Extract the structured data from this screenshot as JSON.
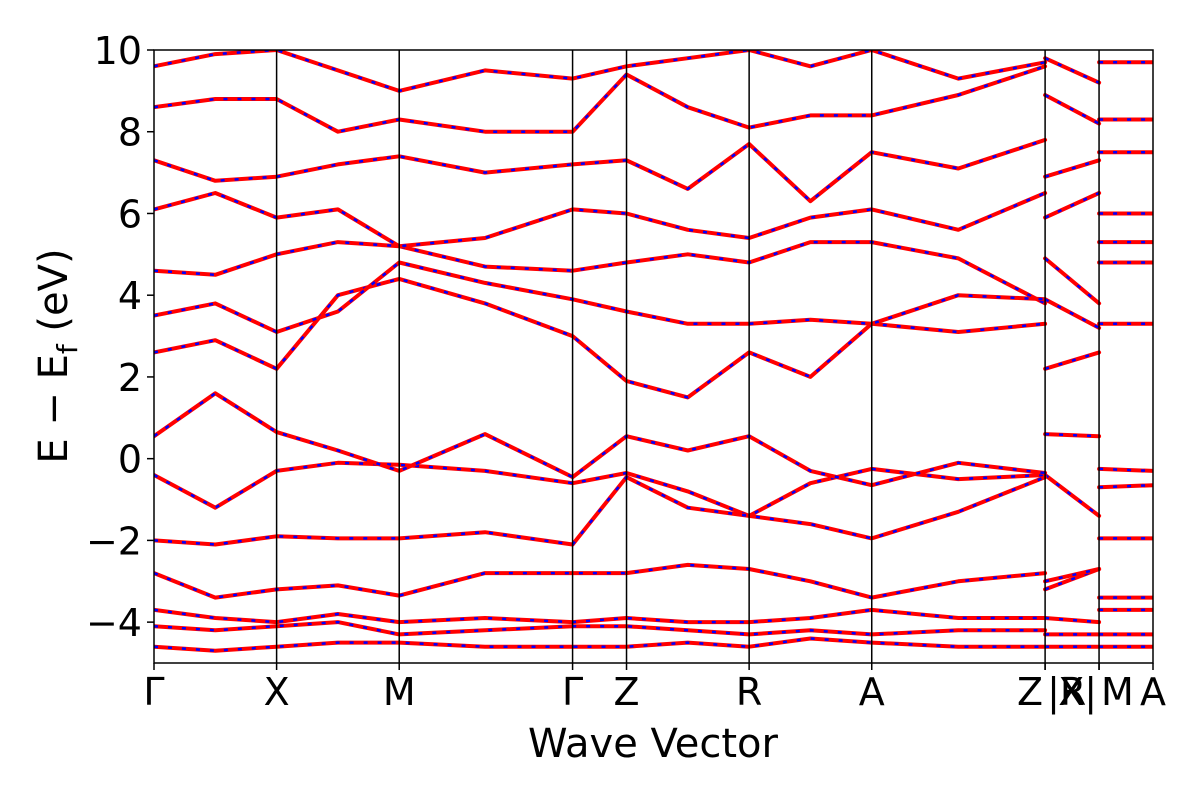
{
  "chart_data": {
    "type": "line",
    "title": "",
    "xlabel": "Wave Vector",
    "ylabel_main": "E − E",
    "ylabel_sub": "f",
    "ylabel_unit": " (eV)",
    "ylim": [
      -5,
      10
    ],
    "yticks": [
      -4,
      -2,
      0,
      2,
      4,
      6,
      8,
      10
    ],
    "grid": false,
    "legend": "none",
    "high_symmetry_points": [
      {
        "label": "Γ",
        "x": 0.0
      },
      {
        "label": "X",
        "x": 0.5
      },
      {
        "label": "M",
        "x": 1.0
      },
      {
        "label": "Γ",
        "x": 1.707
      },
      {
        "label": "Z",
        "x": 1.927
      },
      {
        "label": "R",
        "x": 2.427
      },
      {
        "label": "A",
        "x": 2.927
      },
      {
        "label": "Z",
        "x": 3.634
      },
      {
        "label": "|R",
        "x": 3.634
      },
      {
        "label": "X|",
        "x": 3.854
      },
      {
        "label": "M",
        "x": 3.854
      },
      {
        "label": "A",
        "x": 4.074
      }
    ],
    "section_boundaries": [
      0.5,
      1.0,
      1.707,
      1.927,
      2.427,
      2.927,
      3.634,
      3.854
    ],
    "xlim": [
      0.0,
      4.074
    ],
    "series": [
      {
        "color": "#ff0000",
        "style": "solid",
        "x": [
          0,
          0.25,
          0.5,
          0.75,
          1.0,
          1.35,
          1.707,
          1.927,
          2.177,
          2.427,
          2.677,
          2.927,
          3.28,
          3.634,
          3.634,
          3.854,
          3.854,
          4.074
        ],
        "y": [
          -0.4,
          -1.2,
          -0.3,
          -0.1,
          -0.15,
          -0.3,
          -0.6,
          -0.35,
          -0.8,
          -1.4,
          -0.6,
          -0.25,
          -0.5,
          -0.4,
          -0.4,
          -1.4,
          -0.25,
          -0.3
        ]
      },
      {
        "color": "#ff0000",
        "style": "solid",
        "x": [
          0,
          0.25,
          0.5,
          0.75,
          1.0,
          1.35,
          1.707,
          1.927,
          2.177,
          2.427,
          2.677,
          2.927,
          3.28,
          3.634,
          3.634,
          3.854,
          3.854,
          4.074
        ],
        "y": [
          0.55,
          1.6,
          0.65,
          0.2,
          -0.3,
          0.6,
          -0.45,
          0.55,
          0.2,
          0.55,
          -0.3,
          -0.65,
          -0.1,
          -0.35,
          0.6,
          0.55,
          -0.7,
          -0.65
        ]
      },
      {
        "color": "#ff0000",
        "style": "solid",
        "x": [
          0,
          0.25,
          0.5,
          0.75,
          1.0,
          1.35,
          1.707,
          1.927,
          2.177,
          2.427,
          2.677,
          2.927,
          3.28,
          3.634,
          3.634,
          3.854,
          3.854,
          4.074
        ],
        "y": [
          -2.0,
          -2.1,
          -1.9,
          -1.95,
          -1.95,
          -1.8,
          -2.1,
          -0.45,
          -1.2,
          -1.4,
          -1.6,
          -1.95,
          -1.3,
          -0.45,
          -3.2,
          -2.7,
          -1.95,
          -1.95
        ]
      },
      {
        "color": "#ff0000",
        "style": "solid",
        "x": [
          0,
          0.25,
          0.5,
          0.75,
          1.0,
          1.35,
          1.707,
          1.927,
          2.177,
          2.427,
          2.677,
          2.927,
          3.28,
          3.634,
          3.634,
          3.854,
          3.854,
          4.074
        ],
        "y": [
          2.6,
          2.9,
          2.2,
          4.0,
          4.4,
          3.8,
          3.0,
          1.9,
          1.5,
          2.6,
          2.0,
          3.3,
          3.1,
          3.3,
          2.2,
          2.6,
          3.3,
          3.3
        ]
      },
      {
        "color": "#ff0000",
        "style": "solid",
        "x": [
          0,
          0.25,
          0.5,
          0.75,
          1.0,
          1.35,
          1.707,
          1.927,
          2.177,
          2.427,
          2.677,
          2.927,
          3.28,
          3.634,
          3.634,
          3.854,
          3.854,
          4.074
        ],
        "y": [
          -2.8,
          -3.4,
          -3.2,
          -3.1,
          -3.35,
          -2.8,
          -2.8,
          -2.8,
          -2.6,
          -2.7,
          -3.0,
          -3.4,
          -3.0,
          -2.8,
          -3.0,
          -2.7,
          -3.4,
          -3.4
        ]
      },
      {
        "color": "#ff0000",
        "style": "solid",
        "x": [
          0,
          0.25,
          0.5,
          0.75,
          1.0,
          1.35,
          1.707,
          1.927,
          2.177,
          2.427,
          2.677,
          2.927,
          3.28,
          3.634,
          3.634,
          3.854,
          3.854,
          4.074
        ],
        "y": [
          4.6,
          4.5,
          5.0,
          5.3,
          5.2,
          4.7,
          4.6,
          4.8,
          5.0,
          4.8,
          5.3,
          5.3,
          4.9,
          3.8,
          4.9,
          3.8,
          5.3,
          5.3
        ]
      },
      {
        "color": "#ff0000",
        "style": "solid",
        "x": [
          0,
          0.25,
          0.5,
          0.75,
          1.0,
          1.35,
          1.707,
          1.927,
          2.177,
          2.427,
          2.677,
          2.927,
          3.28,
          3.634,
          3.634,
          3.854,
          3.854,
          4.074
        ],
        "y": [
          7.3,
          6.8,
          6.9,
          7.2,
          7.4,
          7.0,
          7.2,
          7.3,
          6.6,
          7.7,
          6.3,
          7.5,
          7.1,
          7.8,
          6.9,
          7.3,
          7.5,
          7.5
        ]
      },
      {
        "color": "#ff0000",
        "style": "solid",
        "x": [
          0,
          0.25,
          0.5,
          0.75,
          1.0,
          1.35,
          1.707,
          1.927,
          2.177,
          2.427,
          2.677,
          2.927,
          3.28,
          3.634,
          3.634,
          3.854,
          3.854,
          4.074
        ],
        "y": [
          8.6,
          8.8,
          8.8,
          8.0,
          8.3,
          8.0,
          8.0,
          9.4,
          8.6,
          8.1,
          8.4,
          8.4,
          8.9,
          9.6,
          8.9,
          8.2,
          8.3,
          8.3
        ]
      },
      {
        "color": "#ff0000",
        "style": "solid",
        "x": [
          0,
          0.25,
          0.5,
          0.75,
          1.0,
          1.35,
          1.707,
          1.927,
          2.177,
          2.427,
          2.677,
          2.927,
          3.28,
          3.634,
          3.634,
          3.854,
          3.854,
          4.074
        ],
        "y": [
          -4.1,
          -4.2,
          -4.1,
          -4.0,
          -4.3,
          -4.2,
          -4.1,
          -4.1,
          -4.2,
          -4.3,
          -4.2,
          -4.3,
          -4.2,
          -4.2,
          -4.3,
          -4.3,
          -4.3,
          -4.3
        ]
      },
      {
        "color": "#ff0000",
        "style": "solid",
        "x": [
          0,
          0.25,
          0.5,
          0.75,
          1.0,
          1.35,
          1.707,
          1.927,
          2.177,
          2.427,
          2.677,
          2.927,
          3.28,
          3.634,
          3.634,
          3.854,
          3.854,
          4.074
        ],
        "y": [
          -4.6,
          -4.7,
          -4.6,
          -4.5,
          -4.5,
          -4.6,
          -4.6,
          -4.6,
          -4.5,
          -4.6,
          -4.4,
          -4.5,
          -4.6,
          -4.6,
          -4.6,
          -4.6,
          -4.6,
          -4.6
        ]
      },
      {
        "color": "#ff0000",
        "style": "solid",
        "x": [
          0,
          0.25,
          0.5,
          0.75,
          1.0,
          1.35,
          1.707,
          1.927,
          2.177,
          2.427,
          2.677,
          2.927,
          3.28,
          3.634,
          3.634,
          3.854,
          3.854,
          4.074
        ],
        "y": [
          -3.7,
          -3.9,
          -4.0,
          -3.8,
          -4.0,
          -3.9,
          -4.0,
          -3.9,
          -4.0,
          -4.0,
          -3.9,
          -3.7,
          -3.9,
          -3.9,
          -3.9,
          -4.0,
          -3.7,
          -3.7
        ]
      },
      {
        "color": "#ff0000",
        "style": "solid",
        "x": [
          0,
          0.25,
          0.5,
          0.75,
          1.0,
          1.35,
          1.707,
          1.927,
          2.177,
          2.427,
          2.677,
          2.927,
          3.28,
          3.634,
          3.634,
          3.854,
          3.854,
          4.074
        ],
        "y": [
          6.1,
          6.5,
          5.9,
          6.1,
          5.2,
          5.4,
          6.1,
          6.0,
          5.6,
          5.4,
          5.9,
          6.1,
          5.6,
          6.5,
          5.9,
          6.5,
          6.0,
          6.0
        ]
      },
      {
        "color": "#ff0000",
        "style": "solid",
        "x": [
          0,
          0.25,
          0.5,
          0.75,
          1.0,
          1.35,
          1.707,
          1.927,
          2.177,
          2.427,
          2.677,
          2.927,
          3.28,
          3.634,
          3.634,
          3.854,
          3.854,
          4.074
        ],
        "y": [
          3.5,
          3.8,
          3.1,
          3.6,
          4.8,
          4.3,
          3.9,
          3.6,
          3.3,
          3.3,
          3.4,
          3.3,
          4.0,
          3.9,
          3.9,
          3.2,
          4.8,
          4.8
        ]
      },
      {
        "color": "#ff0000",
        "style": "solid",
        "x": [
          0,
          0.25,
          0.5,
          0.75,
          1.0,
          1.35,
          1.707,
          1.927,
          2.177,
          2.427,
          2.677,
          2.927,
          3.28,
          3.634,
          3.634,
          3.854,
          3.854,
          4.074
        ],
        "y": [
          9.6,
          9.9,
          10.0,
          9.5,
          9.0,
          9.5,
          9.3,
          9.6,
          9.8,
          10.0,
          9.6,
          10.0,
          9.3,
          9.7,
          9.8,
          9.2,
          9.7,
          9.7
        ]
      }
    ]
  }
}
